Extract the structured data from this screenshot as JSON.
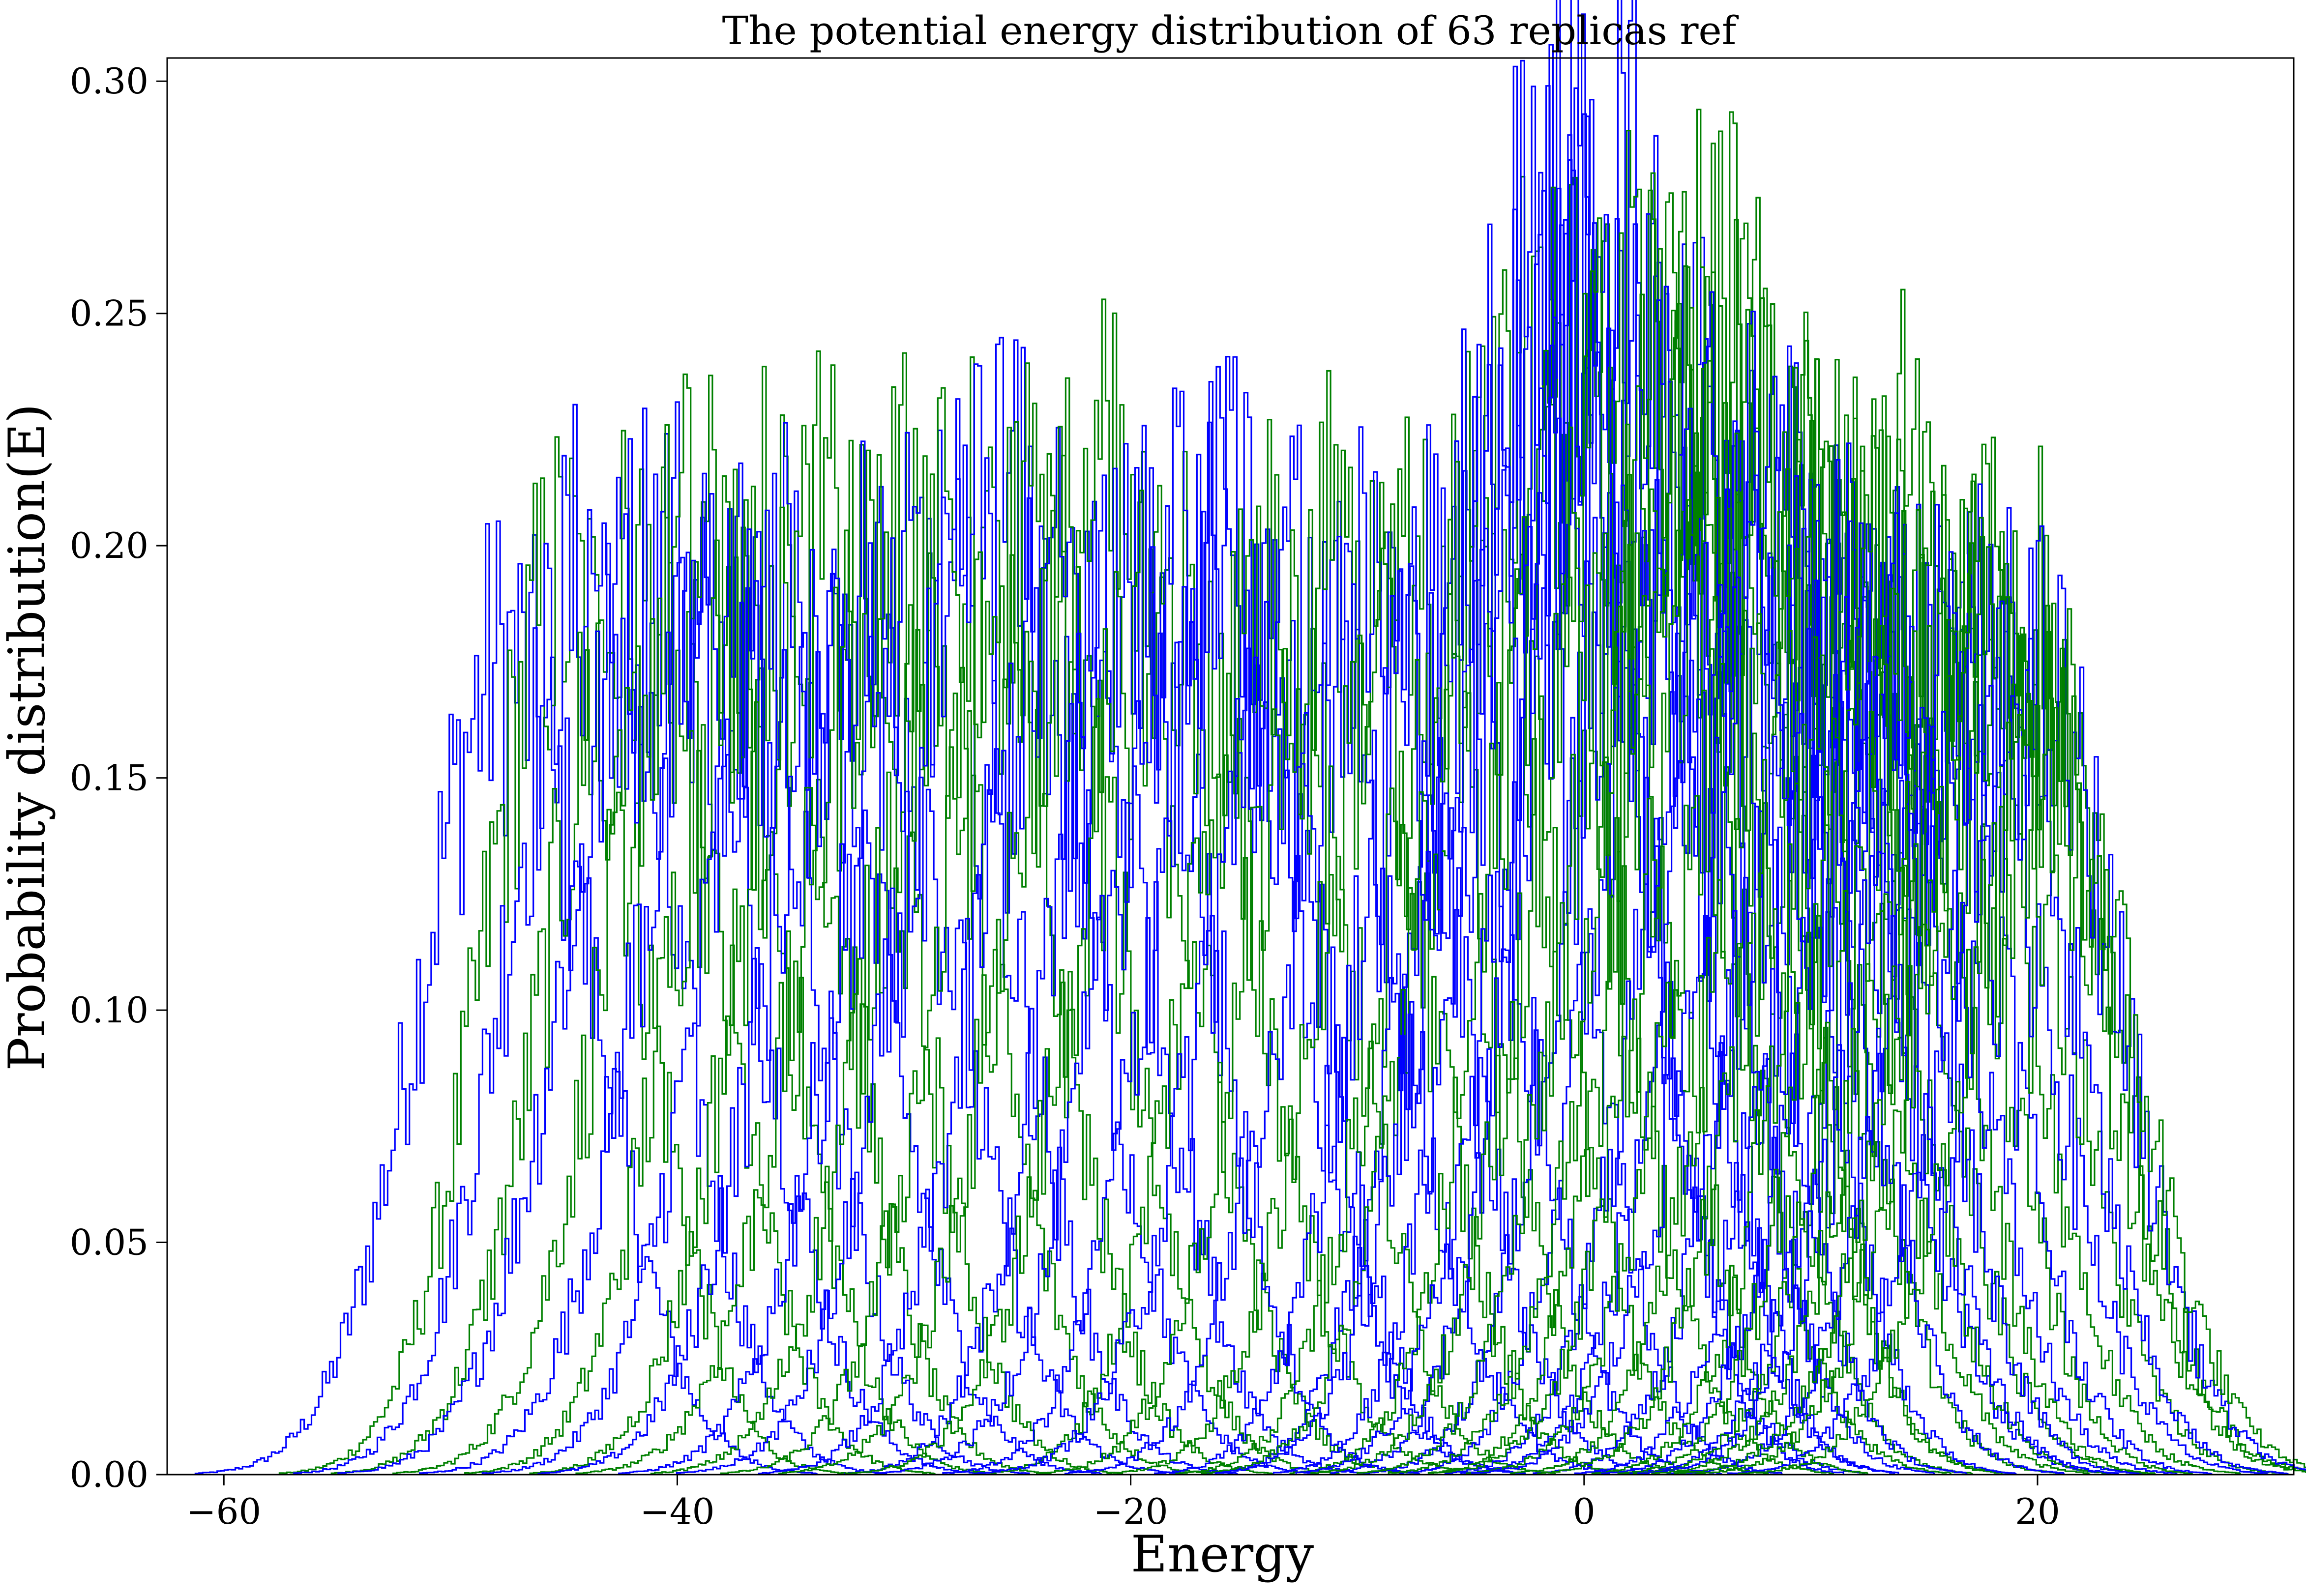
{
  "chart_data": {
    "type": "line",
    "title": "The potential energy distribution of 63 replicas ref",
    "xlabel": "Energy",
    "ylabel": "Probability distribution(E)",
    "xlim": [
      -62.5,
      31.3
    ],
    "ylim": [
      0.0,
      0.305
    ],
    "xticks": [
      -60,
      -40,
      -20,
      0,
      20
    ],
    "xtick_labels": [
      "−60",
      "−40",
      "−20",
      "0",
      "20"
    ],
    "yticks": [
      0.0,
      0.05,
      0.1,
      0.15,
      0.2,
      0.25,
      0.3
    ],
    "ytick_labels": [
      "0.00",
      "0.05",
      "0.10",
      "0.15",
      "0.20",
      "0.25",
      "0.30"
    ],
    "grid": false,
    "legend": "none",
    "drawstyle": "steps",
    "colors": {
      "blue": "#0000ff",
      "green": "#008000"
    },
    "replica_count": 63,
    "series_summary": [
      {
        "center": -47.6,
        "peak": 0.175,
        "color": "blue"
      },
      {
        "center": -45.1,
        "peak": 0.19,
        "color": "green"
      },
      {
        "center": -43.9,
        "peak": 0.195,
        "color": "blue"
      },
      {
        "center": -42.0,
        "peak": 0.19,
        "color": "green"
      },
      {
        "center": -40.8,
        "peak": 0.2,
        "color": "blue"
      },
      {
        "center": -39.3,
        "peak": 0.2,
        "color": "green"
      },
      {
        "center": -38.0,
        "peak": 0.19,
        "color": "blue"
      },
      {
        "center": -36.5,
        "peak": 0.2,
        "color": "green"
      },
      {
        "center": -35.0,
        "peak": 0.19,
        "color": "blue"
      },
      {
        "center": -33.5,
        "peak": 0.2,
        "color": "green"
      },
      {
        "center": -32.0,
        "peak": 0.19,
        "color": "blue"
      },
      {
        "center": -30.5,
        "peak": 0.2,
        "color": "green"
      },
      {
        "center": -29.0,
        "peak": 0.19,
        "color": "blue"
      },
      {
        "center": -27.5,
        "peak": 0.2,
        "color": "green"
      },
      {
        "center": -26.0,
        "peak": 0.21,
        "color": "blue"
      },
      {
        "center": -24.5,
        "peak": 0.2,
        "color": "green"
      },
      {
        "center": -23.0,
        "peak": 0.19,
        "color": "blue"
      },
      {
        "center": -21.5,
        "peak": 0.21,
        "color": "green"
      },
      {
        "center": -20.0,
        "peak": 0.19,
        "color": "blue"
      },
      {
        "center": -18.5,
        "peak": 0.19,
        "color": "green"
      },
      {
        "center": -17.0,
        "peak": 0.2,
        "color": "blue"
      },
      {
        "center": -15.5,
        "peak": 0.2,
        "color": "blue"
      },
      {
        "center": -14.0,
        "peak": 0.19,
        "color": "green"
      },
      {
        "center": -12.5,
        "peak": 0.19,
        "color": "blue"
      },
      {
        "center": -11.0,
        "peak": 0.2,
        "color": "green"
      },
      {
        "center": -9.5,
        "peak": 0.19,
        "color": "blue"
      },
      {
        "center": -8.0,
        "peak": 0.19,
        "color": "green"
      },
      {
        "center": -6.5,
        "peak": 0.19,
        "color": "blue"
      },
      {
        "center": -5.0,
        "peak": 0.2,
        "color": "green"
      },
      {
        "center": -4.0,
        "peak": 0.22,
        "color": "blue"
      },
      {
        "center": -3.0,
        "peak": 0.23,
        "color": "green"
      },
      {
        "center": -2.0,
        "peak": 0.26,
        "color": "blue"
      },
      {
        "center": -1.2,
        "peak": 0.27,
        "color": "blue"
      },
      {
        "center": -0.3,
        "peak": 0.24,
        "color": "green"
      },
      {
        "center": 0.5,
        "peak": 0.25,
        "color": "blue"
      },
      {
        "center": 1.2,
        "peak": 0.28,
        "color": "blue"
      },
      {
        "center": 2.0,
        "peak": 0.24,
        "color": "green"
      },
      {
        "center": 2.8,
        "peak": 0.23,
        "color": "blue"
      },
      {
        "center": 3.5,
        "peak": 0.24,
        "color": "green"
      },
      {
        "center": 4.3,
        "peak": 0.23,
        "color": "blue"
      },
      {
        "center": 5.0,
        "peak": 0.24,
        "color": "green"
      },
      {
        "center": 5.7,
        "peak": 0.25,
        "color": "green"
      },
      {
        "center": 6.4,
        "peak": 0.22,
        "color": "blue"
      },
      {
        "center": 7.1,
        "peak": 0.23,
        "color": "green"
      },
      {
        "center": 7.8,
        "peak": 0.21,
        "color": "blue"
      },
      {
        "center": 8.5,
        "peak": 0.22,
        "color": "green"
      },
      {
        "center": 9.2,
        "peak": 0.2,
        "color": "blue"
      },
      {
        "center": 9.9,
        "peak": 0.21,
        "color": "green"
      },
      {
        "center": 10.6,
        "peak": 0.19,
        "color": "blue"
      },
      {
        "center": 11.3,
        "peak": 0.2,
        "color": "green"
      },
      {
        "center": 12.0,
        "peak": 0.19,
        "color": "blue"
      },
      {
        "center": 12.7,
        "peak": 0.2,
        "color": "green"
      },
      {
        "center": 13.4,
        "peak": 0.18,
        "color": "blue"
      },
      {
        "center": 14.1,
        "peak": 0.21,
        "color": "green"
      },
      {
        "center": 14.8,
        "peak": 0.18,
        "color": "blue"
      },
      {
        "center": 15.5,
        "peak": 0.19,
        "color": "green"
      },
      {
        "center": 16.2,
        "peak": 0.18,
        "color": "blue"
      },
      {
        "center": 16.9,
        "peak": 0.19,
        "color": "green"
      },
      {
        "center": 17.6,
        "peak": 0.18,
        "color": "blue"
      },
      {
        "center": 18.3,
        "peak": 0.19,
        "color": "green"
      },
      {
        "center": 19.0,
        "peak": 0.19,
        "color": "green"
      },
      {
        "center": 19.8,
        "peak": 0.17,
        "color": "blue"
      },
      {
        "center": 20.5,
        "peak": 0.15,
        "color": "green"
      }
    ]
  }
}
